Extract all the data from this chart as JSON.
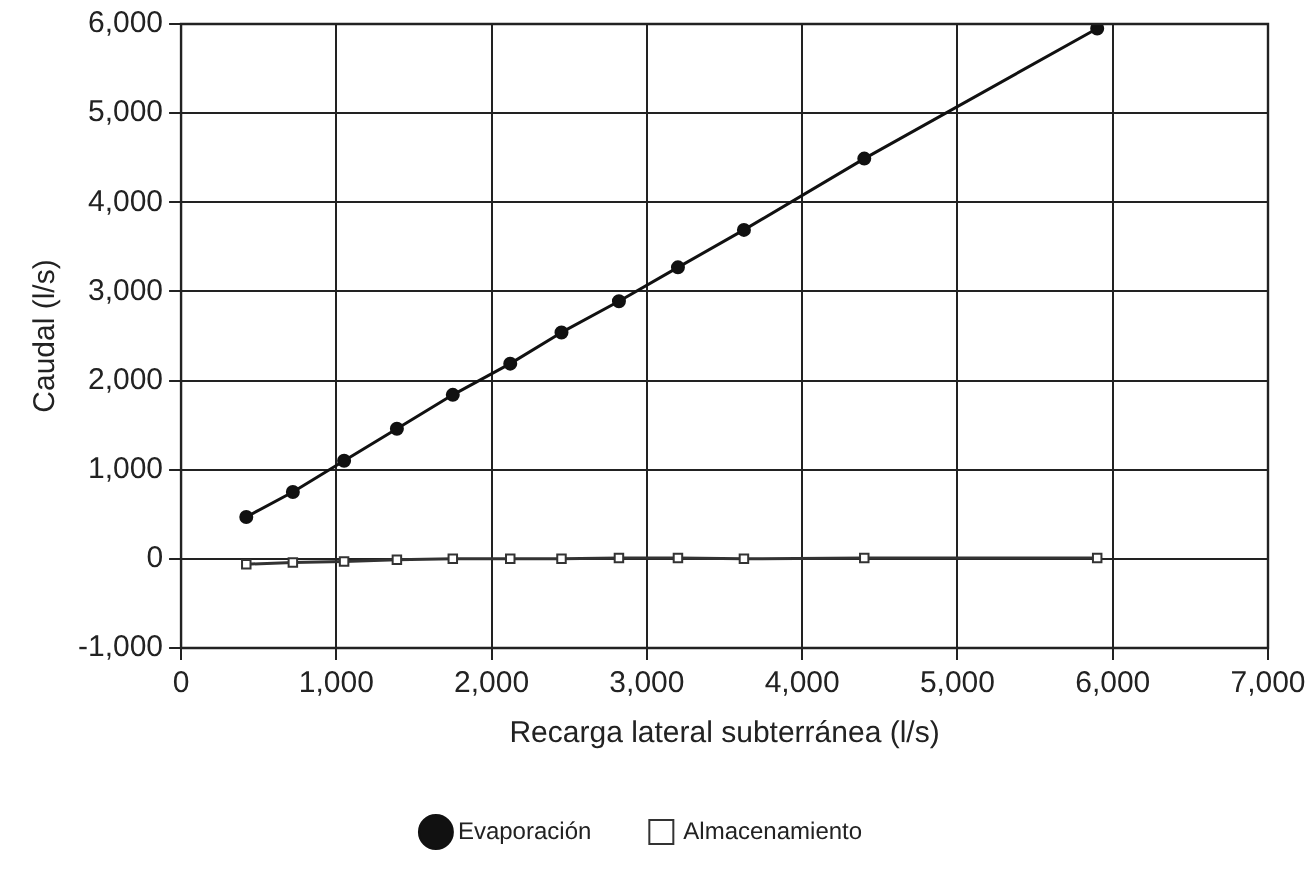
{
  "chart_data": {
    "type": "line",
    "xlabel": "Recarga lateral subterránea (l/s)",
    "ylabel": "Caudal (l/s)",
    "x": [
      420,
      720,
      1050,
      1390,
      1750,
      2120,
      2450,
      2820,
      3200,
      3625,
      4400,
      5900
    ],
    "series": [
      {
        "name": "Evaporación",
        "color": "#111111",
        "marker": "circle",
        "values": [
          470,
          750,
          1100,
          1460,
          1840,
          2190,
          2540,
          2890,
          3270,
          3690,
          4490,
          5950
        ]
      },
      {
        "name": "Almacenamiento",
        "color": "#333333",
        "marker": "square",
        "values": [
          -60,
          -40,
          -30,
          -10,
          0,
          0,
          0,
          10,
          10,
          0,
          10,
          10
        ]
      }
    ],
    "xlim": [
      0,
      7000
    ],
    "ylim": [
      -1000,
      6000
    ],
    "xticks": [
      {
        "value": 0,
        "label": "0"
      },
      {
        "value": 1000,
        "label": "1,000"
      },
      {
        "value": 2000,
        "label": "2,000"
      },
      {
        "value": 3000,
        "label": "3,000"
      },
      {
        "value": 4000,
        "label": "4,000"
      },
      {
        "value": 5000,
        "label": "5,000"
      },
      {
        "value": 6000,
        "label": "6,000"
      },
      {
        "value": 7000,
        "label": "7,000"
      }
    ],
    "yticks": [
      {
        "value": -1000,
        "label": "-1,000"
      },
      {
        "value": 0,
        "label": "0"
      },
      {
        "value": 1000,
        "label": "1,000"
      },
      {
        "value": 2000,
        "label": "2,000"
      },
      {
        "value": 3000,
        "label": "3,000"
      },
      {
        "value": 4000,
        "label": "4,000"
      },
      {
        "value": 5000,
        "label": "5,000"
      },
      {
        "value": 6000,
        "label": "6,000"
      }
    ],
    "grid": true,
    "legend": "bottom",
    "line_style": "solid"
  }
}
